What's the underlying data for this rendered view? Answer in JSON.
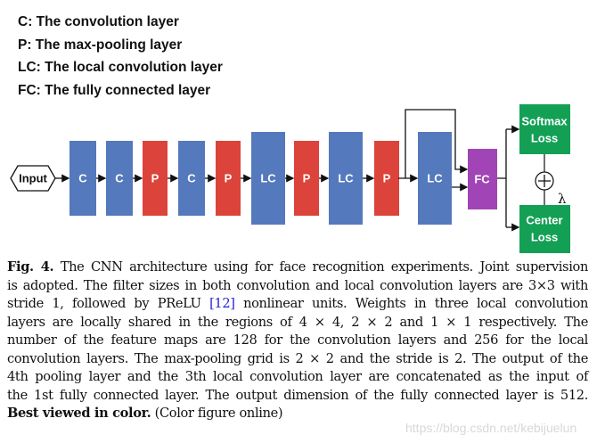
{
  "legend": [
    "C: The convolution layer",
    "P: The max-pooling layer",
    "LC: The local convolution layer",
    "FC: The fully connected layer"
  ],
  "diagram": {
    "input": "Input",
    "layers": [
      "C",
      "C",
      "P",
      "C",
      "P",
      "LC",
      "P",
      "LC",
      "P",
      "LC"
    ],
    "fc": "FC",
    "softmax": [
      "Softmax",
      "Loss"
    ],
    "center": [
      "Center",
      "Loss"
    ],
    "lambda": "λ",
    "colors": {
      "conv": "#5479bd",
      "pool": "#dc433a",
      "fc": "#a144b6",
      "loss": "#13a055"
    }
  },
  "caption": {
    "label": "Fig. 4.",
    "line1": " The CNN architecture using for face recognition experiments. Joint supervision",
    "line2": "is adopted. The filter sizes in both convolution and local convolution layers are 3×3 with",
    "line3a": "stride 1, followed by PReLU ",
    "line3ref": "[12]",
    "line3b": " nonlinear units. Weights in three local convolution",
    "line4": "layers are locally shared in the regions of 4 × 4, 2 × 2 and 1 × 1 respectively. The",
    "line5": "number of the feature maps are 128 for the convolution layers and 256 for the local",
    "line6": "convolution layers. The max-pooling grid is 2 × 2 and the stride is 2. The output of the",
    "line7": "4th pooling layer and the 3th local convolution layer are concatenated as the input of",
    "line8": "the 1st fully connected layer. The output dimension of the fully connected layer is 512.",
    "bold_end": "Best viewed in color.",
    "line9": " (Color figure online)"
  },
  "watermark": "https://blog.csdn.net/kebijuelun"
}
